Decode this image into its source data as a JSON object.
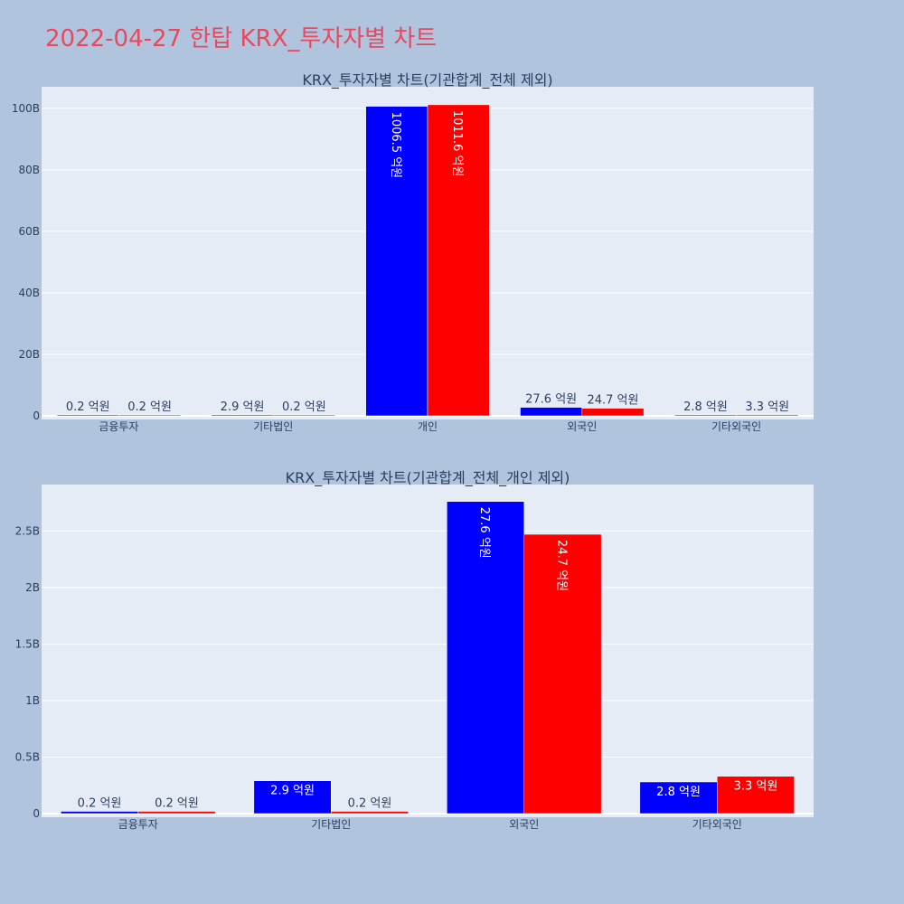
{
  "page": {
    "title": "2022-04-27 한탑 KRX_투자자별 차트"
  },
  "chart_data": [
    {
      "type": "bar",
      "title": "KRX_투자자별 차트(기관합계_전체 제외)",
      "categories": [
        "금융투자",
        "기타법인",
        "개인",
        "외국인",
        "기타외국인"
      ],
      "series": [
        {
          "color": "#0000ff",
          "values": [
            20000000,
            290000000,
            100650000000,
            2760000000,
            280000000
          ],
          "labels": [
            "0.2 억원",
            "2.9 억원",
            "1006.5 억원",
            "27.6 억원",
            "2.8 억원"
          ]
        },
        {
          "color": "#ff0000",
          "values": [
            20000000,
            20000000,
            101160000000,
            2470000000,
            330000000
          ],
          "labels": [
            "0.2 억원",
            "0.2 억원",
            "1011.6 억원",
            "24.7 억원",
            "3.3 억원"
          ]
        }
      ],
      "ylim": [
        0,
        107000000000
      ],
      "yticks": [
        0,
        20000000000,
        40000000000,
        60000000000,
        80000000000,
        100000000000
      ],
      "ytick_labels": [
        "0",
        "20B",
        "40B",
        "60B",
        "80B",
        "100B"
      ],
      "grid": true,
      "legend": "none"
    },
    {
      "type": "bar",
      "title": "KRX_투자자별 차트(기관합계_전체_개인 제외)",
      "categories": [
        "금융투자",
        "기타법인",
        "외국인",
        "기타외국인"
      ],
      "series": [
        {
          "color": "#0000ff",
          "values": [
            20000000,
            290000000,
            2760000000,
            280000000
          ],
          "labels": [
            "0.2 억원",
            "2.9 억원",
            "27.6 억원",
            "2.8 억원"
          ]
        },
        {
          "color": "#ff0000",
          "values": [
            20000000,
            20000000,
            2470000000,
            330000000
          ],
          "labels": [
            "0.2 억원",
            "0.2 억원",
            "24.7 억원",
            "3.3 억원"
          ]
        }
      ],
      "ylim": [
        0,
        2910000000
      ],
      "yticks": [
        0,
        500000000,
        1000000000,
        1500000000,
        2000000000,
        2500000000
      ],
      "ytick_labels": [
        "0",
        "0.5B",
        "1B",
        "1.5B",
        "2B",
        "2.5B"
      ],
      "grid": true,
      "legend": "none"
    }
  ]
}
